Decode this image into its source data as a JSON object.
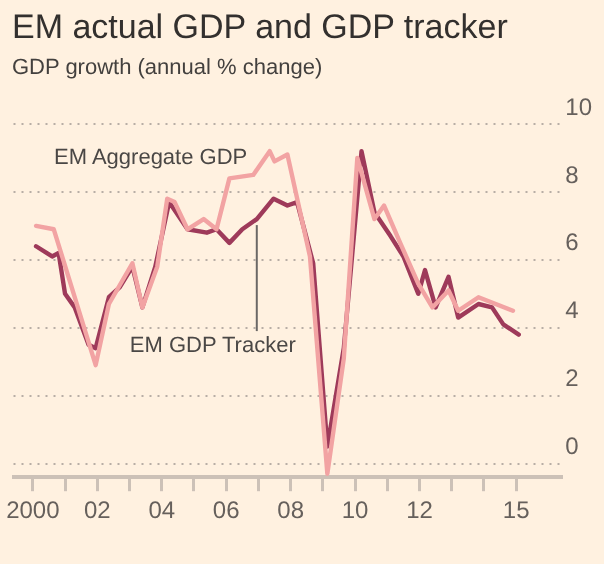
{
  "chart_data": {
    "type": "line",
    "title": "EM actual GDP and GDP tracker",
    "subtitle": "GDP growth (annual % change)",
    "series": [
      {
        "name": "EM Aggregate GDP",
        "color": "#f2a3a3",
        "x": [
          2000.1,
          2000.65,
          2001.95,
          2002.36,
          2003.09,
          2003.4,
          2003.86,
          2004.17,
          2004.4,
          2004.8,
          2005.3,
          2005.7,
          2006.1,
          2006.84,
          2007.35,
          2007.5,
          2007.9,
          2008.6,
          2009.14,
          2009.65,
          2010.07,
          2010.6,
          2010.9,
          2011.4,
          2011.96,
          2012.4,
          2012.9,
          2013.2,
          2013.83,
          2014.9
        ],
        "values": [
          7.0,
          6.9,
          2.9,
          4.7,
          5.9,
          4.6,
          5.8,
          7.8,
          7.7,
          6.9,
          7.2,
          6.9,
          8.4,
          8.5,
          9.2,
          8.9,
          9.1,
          6.1,
          -0.3,
          3.1,
          9.0,
          7.2,
          7.6,
          6.5,
          5.3,
          4.6,
          5.1,
          4.5,
          4.9,
          4.5
        ]
      },
      {
        "name": "EM GDP Tracker",
        "color": "#9e3a5a",
        "x": [
          2000.1,
          2000.6,
          2000.8,
          2001.0,
          2001.3,
          2001.73,
          2001.95,
          2002.36,
          2002.7,
          2003.09,
          2003.4,
          2003.8,
          2004.23,
          2004.8,
          2005.4,
          2005.7,
          2006.1,
          2006.5,
          2006.95,
          2007.47,
          2007.9,
          2008.2,
          2008.7,
          2009.14,
          2009.65,
          2010.2,
          2010.6,
          2011.1,
          2011.5,
          2011.96,
          2012.17,
          2012.5,
          2012.9,
          2013.2,
          2013.83,
          2014.25,
          2014.6,
          2015.08
        ],
        "values": [
          6.4,
          6.1,
          6.2,
          5.0,
          4.6,
          3.5,
          3.4,
          4.9,
          5.2,
          5.8,
          4.6,
          5.8,
          7.7,
          6.9,
          6.8,
          6.9,
          6.5,
          6.9,
          7.2,
          7.8,
          7.6,
          7.7,
          5.9,
          0.5,
          3.4,
          9.2,
          7.4,
          6.7,
          6.1,
          5.0,
          5.7,
          4.6,
          5.5,
          4.3,
          4.7,
          4.6,
          4.1,
          3.8
        ]
      }
    ],
    "xlim": [
      1999.4,
      2016.4
    ],
    "xticks": [
      {
        "value": 2000,
        "label": "2000"
      },
      {
        "value": 2001,
        "label": null
      },
      {
        "value": 2002,
        "label": "02"
      },
      {
        "value": 2003,
        "label": null
      },
      {
        "value": 2004,
        "label": "04"
      },
      {
        "value": 2005,
        "label": null
      },
      {
        "value": 2006,
        "label": "06"
      },
      {
        "value": 2007,
        "label": null
      },
      {
        "value": 2008,
        "label": "08"
      },
      {
        "value": 2009,
        "label": null
      },
      {
        "value": 2010,
        "label": "10"
      },
      {
        "value": 2011,
        "label": null
      },
      {
        "value": 2012,
        "label": "12"
      },
      {
        "value": 2013,
        "label": null
      },
      {
        "value": 2014,
        "label": null
      },
      {
        "value": 2015,
        "label": "15"
      }
    ],
    "ylim": [
      -0.4,
      10
    ],
    "yticks": [
      0,
      2,
      4,
      6,
      8,
      10
    ],
    "grid": "y",
    "legend": false,
    "marker": "none",
    "line_style": "solid"
  }
}
